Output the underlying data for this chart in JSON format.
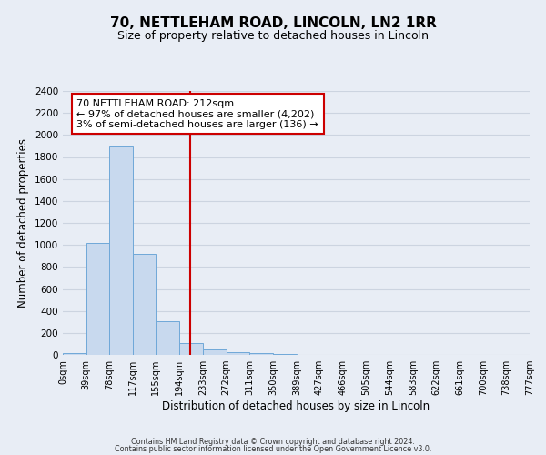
{
  "title": "70, NETTLEHAM ROAD, LINCOLN, LN2 1RR",
  "subtitle": "Size of property relative to detached houses in Lincoln",
  "xlabel": "Distribution of detached houses by size in Lincoln",
  "ylabel": "Number of detached properties",
  "bin_edges": [
    0,
    39,
    78,
    117,
    155,
    194,
    233,
    272,
    311,
    350,
    389,
    427,
    466,
    505,
    544,
    583,
    622,
    661,
    700,
    738,
    777
  ],
  "bin_counts": [
    20,
    1020,
    1900,
    920,
    310,
    105,
    50,
    25,
    15,
    5,
    0,
    0,
    0,
    0,
    0,
    0,
    0,
    0,
    0,
    0
  ],
  "bar_color": "#c8d9ee",
  "bar_edge_color": "#6fa8d8",
  "property_size": 212,
  "vline_color": "#cc0000",
  "ylim": [
    0,
    2400
  ],
  "yticks": [
    0,
    200,
    400,
    600,
    800,
    1000,
    1200,
    1400,
    1600,
    1800,
    2000,
    2200,
    2400
  ],
  "xtick_labels": [
    "0sqm",
    "39sqm",
    "78sqm",
    "117sqm",
    "155sqm",
    "194sqm",
    "233sqm",
    "272sqm",
    "311sqm",
    "350sqm",
    "389sqm",
    "427sqm",
    "466sqm",
    "505sqm",
    "544sqm",
    "583sqm",
    "622sqm",
    "661sqm",
    "700sqm",
    "738sqm",
    "777sqm"
  ],
  "annotation_title": "70 NETTLEHAM ROAD: 212sqm",
  "annotation_line1": "← 97% of detached houses are smaller (4,202)",
  "annotation_line2": "3% of semi-detached houses are larger (136) →",
  "annotation_box_color": "#ffffff",
  "annotation_box_edge": "#cc0000",
  "grid_color": "#ccd4e0",
  "bg_color": "#e8edf5",
  "footer1": "Contains HM Land Registry data © Crown copyright and database right 2024.",
  "footer2": "Contains public sector information licensed under the Open Government Licence v3.0."
}
